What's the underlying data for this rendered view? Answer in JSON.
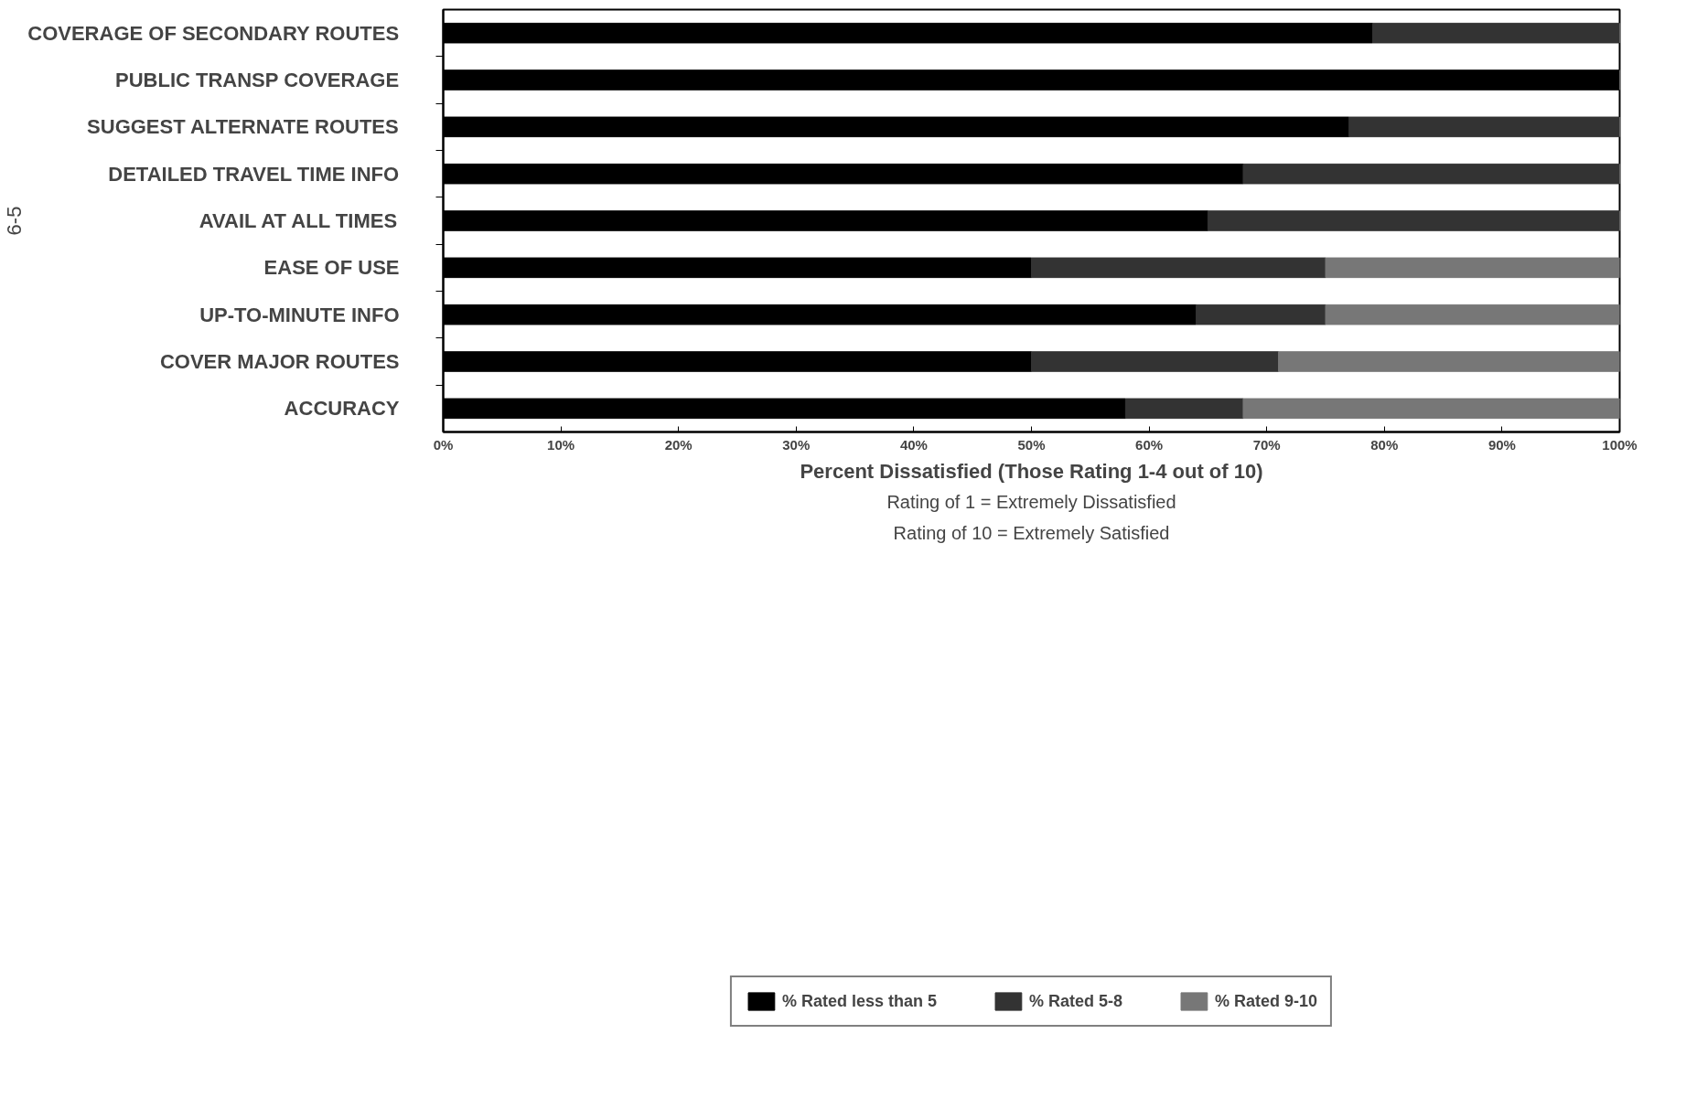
{
  "chart_data": {
    "type": "bar",
    "orientation": "horizontal",
    "stacked": true,
    "categories": [
      "COVERAGE OF SECONDARY ROUTES",
      "PUBLIC TRANSP COVERAGE",
      "SUGGEST ALTERNATE ROUTES",
      "DETAILED TRAVEL TIME INFO",
      "AVAIL AT ALL TIMES",
      "EASE OF USE",
      "UP-TO-MINUTE INFO",
      "COVER MAJOR ROUTES",
      "ACCURACY"
    ],
    "series": [
      {
        "name": "% Rated less than 5",
        "color": "#000000",
        "values": [
          79,
          100,
          77,
          68,
          65,
          50,
          64,
          50,
          58
        ]
      },
      {
        "name": "% Rated 5-8",
        "color": "#333333",
        "values": [
          21,
          0,
          23,
          32,
          35,
          25,
          11,
          21,
          10
        ]
      },
      {
        "name": "% Rated 9-10",
        "color": "#777777",
        "values": [
          0,
          0,
          0,
          0,
          0,
          25,
          25,
          29,
          32
        ]
      }
    ],
    "xlim": [
      0,
      100
    ],
    "xticks": [
      {
        "value": 0,
        "label": "0%"
      },
      {
        "value": 10,
        "label": "10%"
      },
      {
        "value": 20,
        "label": "20%"
      },
      {
        "value": 30,
        "label": "30%"
      },
      {
        "value": 40,
        "label": "40%"
      },
      {
        "value": 50,
        "label": "50%"
      },
      {
        "value": 60,
        "label": "60%"
      },
      {
        "value": 70,
        "label": "70%"
      },
      {
        "value": 80,
        "label": "80%"
      },
      {
        "value": 90,
        "label": "90%"
      },
      {
        "value": 100,
        "label": "100%"
      }
    ],
    "xlabel": "Percent Dissatisfied (Those Rating 1-4 out of 10)",
    "annotations": [
      "Rating of 1 = Extremely Dissatisfied",
      "Rating of 10 = Extremely Satisfied",
      "6-5"
    ],
    "grid": false,
    "legend": "bottom"
  }
}
